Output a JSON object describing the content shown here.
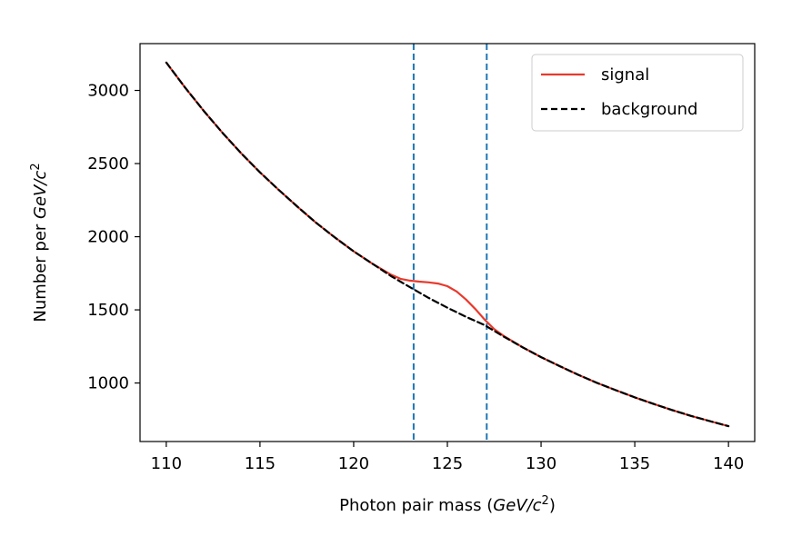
{
  "chart_data": {
    "type": "line",
    "title": "",
    "xlabel_text": "Photon pair mass (",
    "xlabel_unit": "GeV/c",
    "xlabel_sup": "2",
    "xlabel_close": ")",
    "ylabel_text": "Number per ",
    "ylabel_unit": "GeV/c",
    "ylabel_sup": "2",
    "xlim": [
      108.6,
      141.4
    ],
    "ylim": [
      600,
      3320
    ],
    "xticks": [
      110,
      115,
      120,
      125,
      130,
      135,
      140
    ],
    "yticks": [
      1000,
      1500,
      2000,
      2500,
      3000
    ],
    "grid": false,
    "legend_position": "top-right",
    "vlines": [
      {
        "x": 123.2,
        "color": "#1f77b4",
        "style": "dashed"
      },
      {
        "x": 127.1,
        "color": "#1f77b4",
        "style": "dashed"
      }
    ],
    "series": [
      {
        "name": "signal",
        "color": "#e8392c",
        "style": "solid",
        "x": [
          110,
          111,
          112,
          113,
          114,
          115,
          116,
          117,
          118,
          119,
          120,
          121,
          122,
          122.5,
          123,
          123.5,
          124,
          124.5,
          125,
          125.5,
          126,
          126.5,
          127,
          127.5,
          128,
          129,
          130,
          131,
          132,
          133,
          134,
          135,
          136,
          137,
          138,
          139,
          140
        ],
        "y": [
          3190,
          3020,
          2860,
          2710,
          2570,
          2440,
          2320,
          2205,
          2095,
          1995,
          1900,
          1815,
          1740,
          1712,
          1700,
          1693,
          1688,
          1680,
          1662,
          1625,
          1570,
          1505,
          1432,
          1368,
          1322,
          1245,
          1177,
          1115,
          1055,
          1000,
          950,
          902,
          857,
          815,
          775,
          740,
          705
        ]
      },
      {
        "name": "background",
        "color": "#000000",
        "style": "dashed",
        "x": [
          110,
          111,
          112,
          113,
          114,
          115,
          116,
          117,
          118,
          119,
          120,
          121,
          122,
          123,
          124,
          125,
          126,
          127,
          128,
          129,
          130,
          131,
          132,
          133,
          134,
          135,
          136,
          137,
          138,
          139,
          140
        ],
        "y": [
          3190,
          3020,
          2860,
          2710,
          2570,
          2440,
          2320,
          2205,
          2095,
          1995,
          1900,
          1815,
          1730,
          1655,
          1582,
          1515,
          1452,
          1395,
          1318,
          1245,
          1177,
          1115,
          1055,
          1000,
          950,
          902,
          857,
          815,
          775,
          740,
          705
        ]
      }
    ]
  }
}
